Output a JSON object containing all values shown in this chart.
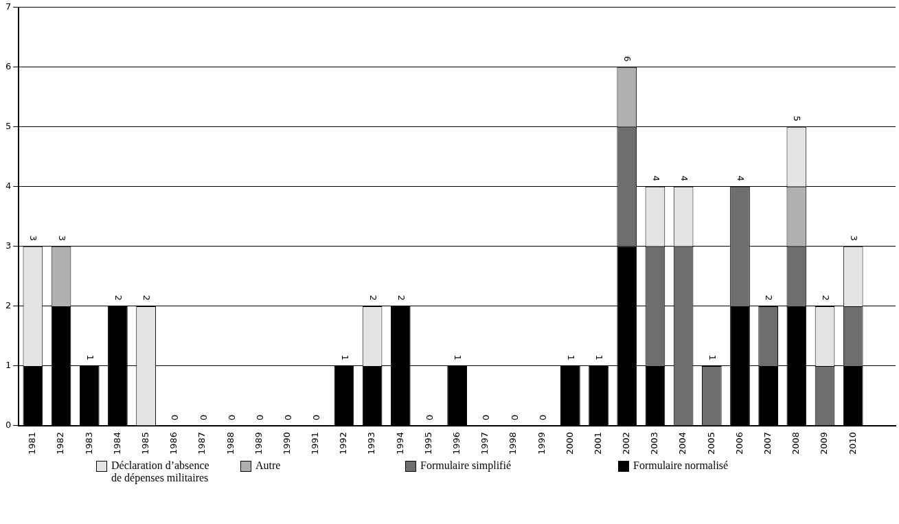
{
  "chart_data": {
    "type": "bar",
    "stacked": true,
    "categories": [
      "1981",
      "1982",
      "1983",
      "1984",
      "1985",
      "1986",
      "1987",
      "1988",
      "1989",
      "1990",
      "1991",
      "1992",
      "1993",
      "1994",
      "1995",
      "1996",
      "1997",
      "1998",
      "1999",
      "2000",
      "2001",
      "2002",
      "2003",
      "2004",
      "2005",
      "2006",
      "2007",
      "2008",
      "2009",
      "2010",
      null
    ],
    "series": [
      {
        "name": "Formulaire normalisé",
        "color": "#000000",
        "values": [
          1,
          2,
          1,
          2,
          0,
          0,
          0,
          0,
          0,
          0,
          0,
          1,
          1,
          2,
          0,
          1,
          0,
          0,
          0,
          1,
          1,
          3,
          1,
          0,
          0,
          2,
          1,
          2,
          0,
          1,
          null
        ]
      },
      {
        "name": "Formulaire simplifié",
        "color": "#6e6e6e",
        "values": [
          0,
          0,
          0,
          0,
          0,
          0,
          0,
          0,
          0,
          0,
          0,
          0,
          0,
          0,
          0,
          0,
          0,
          0,
          0,
          0,
          0,
          2,
          2,
          3,
          1,
          2,
          1,
          1,
          1,
          1,
          null
        ]
      },
      {
        "name": "Autre",
        "color": "#b0b0b0",
        "values": [
          0,
          1,
          0,
          0,
          0,
          0,
          0,
          0,
          0,
          0,
          0,
          0,
          0,
          0,
          0,
          0,
          0,
          0,
          0,
          0,
          0,
          1,
          0,
          0,
          0,
          0,
          0,
          1,
          0,
          0,
          null
        ]
      },
      {
        "name": "Déclaration d’absence de dépenses militaires",
        "color": "#e4e4e4",
        "values": [
          2,
          0,
          0,
          0,
          2,
          0,
          0,
          0,
          0,
          0,
          0,
          0,
          1,
          0,
          0,
          0,
          0,
          0,
          0,
          0,
          0,
          0,
          1,
          1,
          0,
          0,
          0,
          1,
          1,
          1,
          null
        ]
      }
    ],
    "totals": [
      "3",
      "3",
      "1",
      "2",
      "2",
      "0",
      "0",
      "0",
      "0",
      "0",
      "0",
      "1",
      "2",
      "2",
      "0",
      "1",
      "0",
      "0",
      "0",
      "1",
      "1",
      "6",
      "4",
      "4",
      "1",
      "4",
      "2",
      "5",
      "2",
      "3",
      null
    ],
    "ylim": [
      0,
      7
    ],
    "yticks": [
      0,
      1,
      2,
      3,
      4,
      5,
      6,
      7
    ],
    "grid": "y",
    "legend": "bottom"
  }
}
